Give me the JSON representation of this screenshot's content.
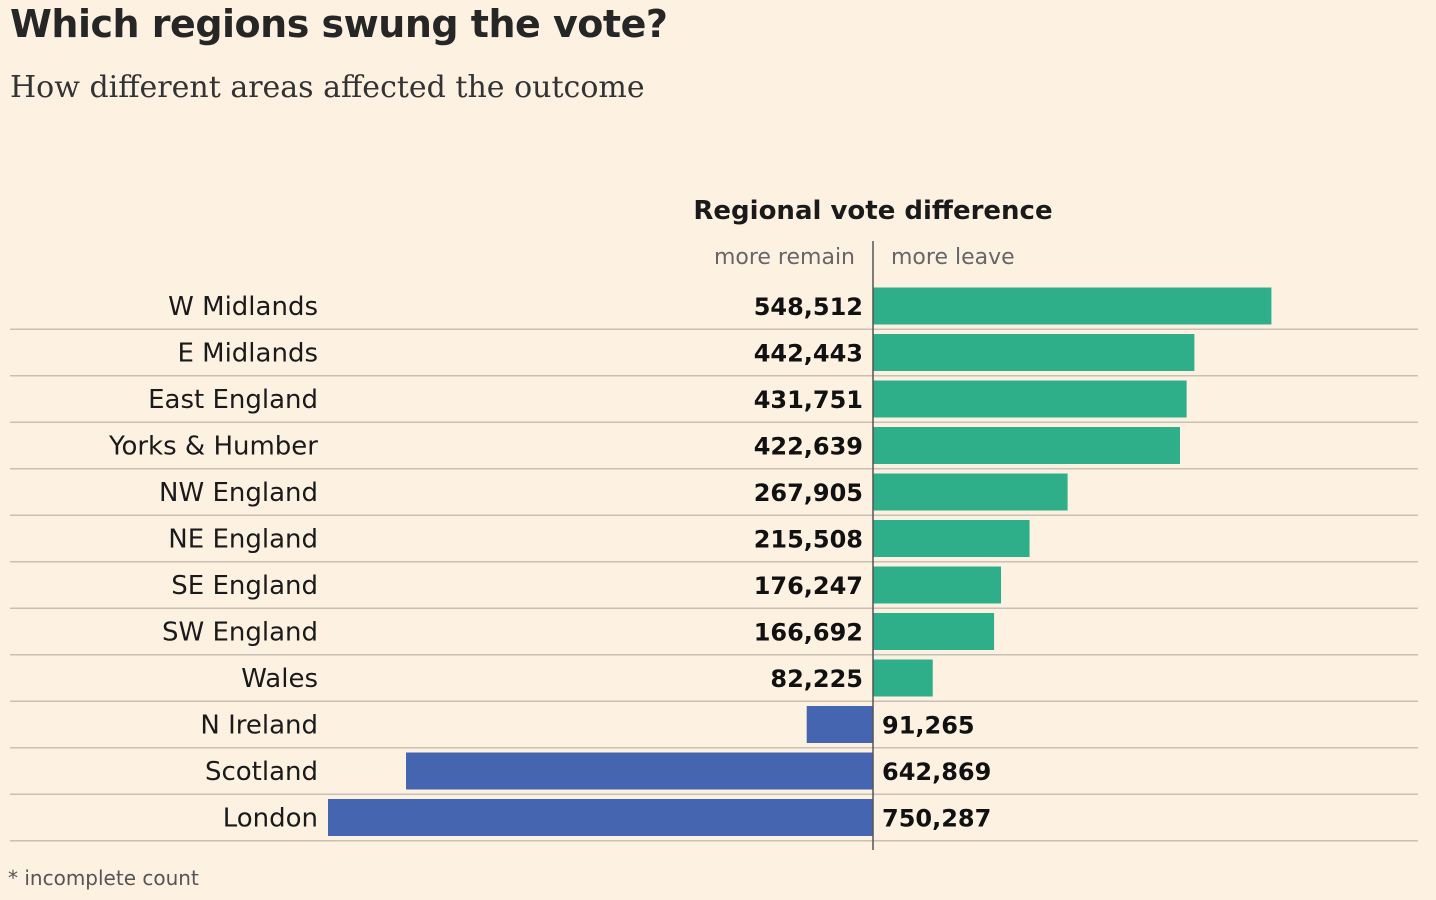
{
  "title": "Which regions swung the vote?",
  "subtitle": "How different areas affected the outcome",
  "footnote": "* incomplete count",
  "chart_data": {
    "type": "bar",
    "orientation": "horizontal-diverging",
    "title": "Regional vote difference",
    "left_label": "more remain",
    "right_label": "more leave",
    "categories": [
      "W Midlands",
      "E Midlands",
      "East England",
      "Yorks & Humber",
      "NW England",
      "NE England",
      "SE England",
      "SW England",
      "Wales",
      "N Ireland",
      "Scotland",
      "London"
    ],
    "values": [
      548512,
      442443,
      431751,
      422639,
      267905,
      215508,
      176247,
      166692,
      82225,
      91265,
      642869,
      750287
    ],
    "labels": [
      "548,512",
      "442,443",
      "431,751",
      "422,639",
      "267,905",
      "215,508",
      "176,247",
      "166,692",
      "82,225",
      "91,265",
      "642,869",
      "750,287"
    ],
    "sides": [
      "leave",
      "leave",
      "leave",
      "leave",
      "leave",
      "leave",
      "leave",
      "leave",
      "leave",
      "remain",
      "remain",
      "remain"
    ],
    "colors": {
      "leave": "#2fae8a",
      "remain": "#4565b0",
      "axis": "#555555",
      "gridline": "#c9c0b4"
    }
  }
}
